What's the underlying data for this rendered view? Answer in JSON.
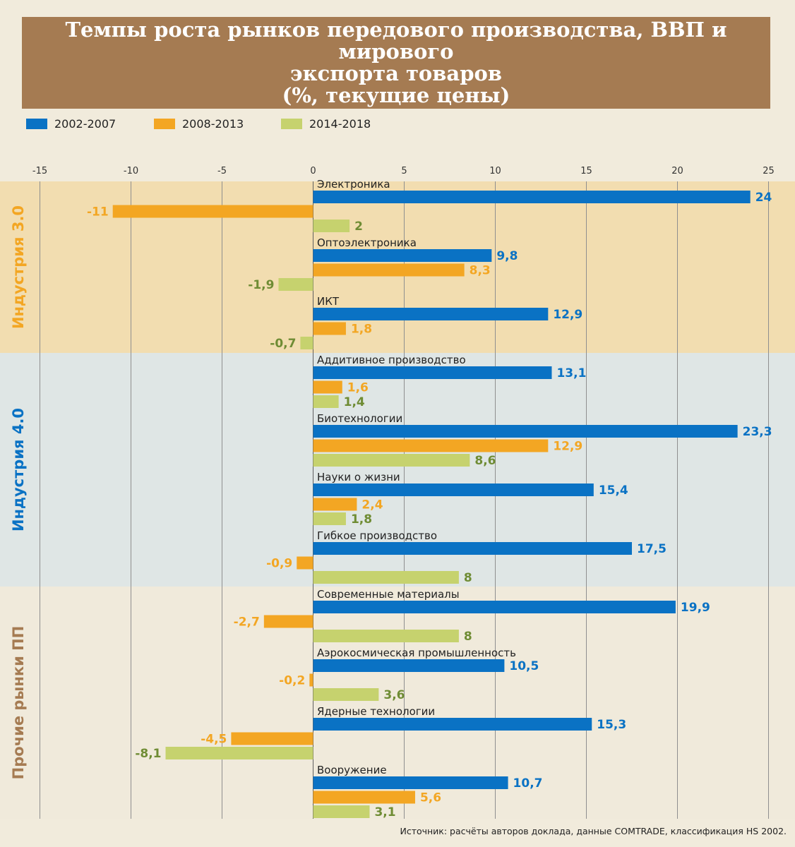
{
  "title": {
    "line1": "Темпы роста рынков передового производства, ВВП и мирового",
    "line2": "экспорта товаров",
    "line3": "(%, текущие цены)"
  },
  "source": "Источник: расчёты авторов доклада, данные COMTRADE, классификация HS 2002.",
  "colors": {
    "title_bg": "#a57b52",
    "page_bg": "#f1ebdc",
    "band_industry3": "#f2ddb0",
    "band_industry4": "#dfe6e5",
    "band_other": "#f0eadb",
    "series_2002": "#0a72c4",
    "series_2008": "#f3a623",
    "series_2014": "#c6d26e",
    "label_2002": "#0a72c4",
    "label_2008": "#f3a623",
    "label_2014": "#6f8c34",
    "group_industry3": "#f3a623",
    "group_industry4": "#0a72c4",
    "group_other": "#a57b52"
  },
  "chart_data": {
    "type": "bar",
    "orientation": "horizontal",
    "title": "Темпы роста рынков передового производства, ВВП и мирового экспорта товаров (%, текущие цены)",
    "xlim": [
      -15,
      25
    ],
    "xticks": [
      -15,
      -10,
      -5,
      0,
      5,
      10,
      15,
      20,
      25
    ],
    "xtick_labels": [
      "-15",
      "-10",
      "-5",
      "0",
      "5",
      "10",
      "15",
      "20",
      "25"
    ],
    "grid": true,
    "legend_position": "top-left",
    "series": [
      {
        "name": "2002-2007",
        "color": "#0a72c4",
        "label_color": "#0a72c4"
      },
      {
        "name": "2008-2013",
        "color": "#f3a623",
        "label_color": "#f3a623"
      },
      {
        "name": "2014-2018",
        "color": "#c6d26e",
        "label_color": "#6f8c34"
      }
    ],
    "groups": [
      {
        "name": "Индустрия 3.0",
        "band_color": "#f2ddb0",
        "label_color": "#f3a623",
        "first": 0,
        "count": 3
      },
      {
        "name": "Индустрия 4.0",
        "band_color": "#dfe6e5",
        "label_color": "#0a72c4",
        "first": 3,
        "count": 4
      },
      {
        "name": "Прочие рынки ПП",
        "band_color": "#f0eadb",
        "label_color": "#a57b52",
        "first": 7,
        "count": 4
      }
    ],
    "categories": [
      {
        "name": "Электроника",
        "values": [
          24,
          -11,
          2
        ],
        "labels": [
          "24",
          "-11",
          "2"
        ]
      },
      {
        "name": "Оптоэлектроника",
        "values": [
          9.8,
          8.3,
          -1.9
        ],
        "labels": [
          "9,8",
          "8,3",
          "-1,9"
        ]
      },
      {
        "name": "ИКТ",
        "values": [
          12.9,
          1.8,
          -0.7
        ],
        "labels": [
          "12,9",
          "1,8",
          "-0,7"
        ]
      },
      {
        "name": "Аддитивное производство",
        "values": [
          13.1,
          1.6,
          1.4
        ],
        "labels": [
          "13,1",
          "1,6",
          "1,4"
        ]
      },
      {
        "name": "Биотехнологии",
        "values": [
          23.3,
          12.9,
          8.6
        ],
        "labels": [
          "23,3",
          "12,9",
          "8,6"
        ]
      },
      {
        "name": "Науки о жизни",
        "values": [
          15.4,
          2.4,
          1.8
        ],
        "labels": [
          "15,4",
          "2,4",
          "1,8"
        ]
      },
      {
        "name": "Гибкое производство",
        "values": [
          17.5,
          -0.9,
          8
        ],
        "labels": [
          "17,5",
          "-0,9",
          "8"
        ]
      },
      {
        "name": "Современные материалы",
        "values": [
          19.9,
          -2.7,
          8
        ],
        "labels": [
          "19,9",
          "-2,7",
          "8"
        ]
      },
      {
        "name": "Аэрокосмическая промышленность",
        "values": [
          10.5,
          -0.2,
          3.6
        ],
        "labels": [
          "10,5",
          "-0,2",
          "3,6"
        ]
      },
      {
        "name": "Ядерные технологии",
        "values": [
          15.3,
          -4.5,
          -8.1
        ],
        "labels": [
          "15,3",
          "-4,5",
          "-8,1"
        ]
      },
      {
        "name": "Вооружение",
        "values": [
          10.7,
          5.6,
          3.1
        ],
        "labels": [
          "10,7",
          "5,6",
          "3,1"
        ]
      }
    ]
  }
}
